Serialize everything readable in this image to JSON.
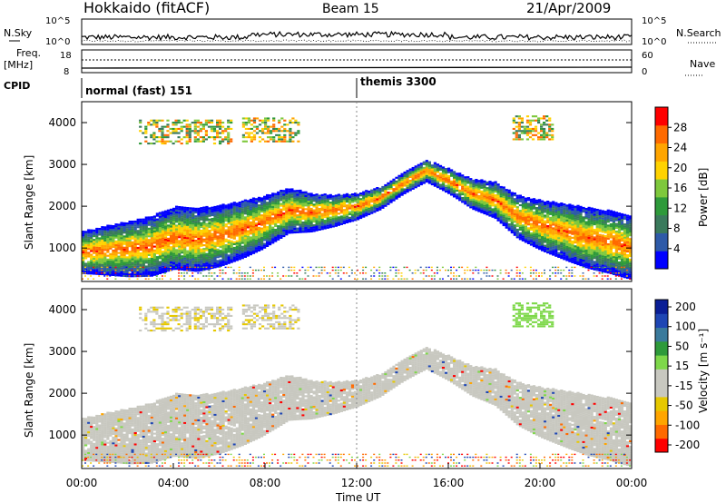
{
  "header": {
    "station": "Hokkaido (fitACF)",
    "beam": "Beam 15",
    "date": "21/Apr/2009"
  },
  "info_panel": {
    "nsky_label": "N.Sky",
    "nsky_ticks": [
      "10^5",
      "10^0"
    ],
    "nsearch_label": "N.Search",
    "nsearch_ticks": [
      "10^5",
      "10^0"
    ],
    "freq_label": "Freq.",
    "freq_unit": "[MHz]",
    "freq_ticks": [
      "18",
      "8"
    ],
    "nave_label": "Nave",
    "nave_ticks": [
      "60",
      "0"
    ],
    "cpid_label": "CPID",
    "cpid_segments": [
      {
        "label": "normal (fast) 151",
        "start_hour": 0
      },
      {
        "label": "themis 3300",
        "start_hour": 12.0
      }
    ]
  },
  "chart_data": [
    {
      "type": "heatmap",
      "panel": "power",
      "ylabel": "Slant Range [km]",
      "yticks": [
        1000,
        2000,
        3000,
        4000
      ],
      "ylim": [
        200,
        4500
      ],
      "xlim": [
        0,
        24
      ],
      "colorbar": {
        "label": "Power [dB]",
        "ticks": [
          4,
          8,
          12,
          16,
          20,
          24,
          28
        ],
        "range": [
          0,
          32
        ],
        "colors": [
          "#0000ff",
          "#2e5aa8",
          "#3a7a5c",
          "#2e9a3a",
          "#7ec83c",
          "#ffd200",
          "#ffa500",
          "#ff6a00",
          "#ff0000"
        ]
      },
      "echo_bands": [
        {
          "x": [
            0,
            1,
            2,
            3,
            4,
            5,
            6,
            7,
            7.8,
            8.4,
            9,
            10,
            11,
            12,
            13,
            14,
            15,
            16,
            17,
            18,
            19,
            20,
            21,
            22,
            23,
            24
          ],
          "y": [
            900,
            950,
            980,
            1050,
            1250,
            1200,
            1300,
            1450,
            1600,
            1750,
            1900,
            1850,
            1900,
            2000,
            2200,
            2550,
            2850,
            2600,
            2300,
            2150,
            1750,
            1550,
            1400,
            1250,
            1150,
            1000
          ]
        }
      ],
      "upper_patches": [
        {
          "x_start": 2.5,
          "x_end": 6.5,
          "y_center": 3800
        },
        {
          "x_start": 7.0,
          "x_end": 9.5,
          "y_center": 3850
        },
        {
          "x_start": 18.8,
          "x_end": 20.5,
          "y_center": 3900
        }
      ]
    },
    {
      "type": "heatmap",
      "panel": "velocity",
      "ylabel": "Slant Range [km]",
      "yticks": [
        1000,
        2000,
        3000,
        4000
      ],
      "ylim": [
        200,
        4500
      ],
      "xlim": [
        0,
        24
      ],
      "xlabel": "Time UT",
      "xticks": [
        "00:00",
        "04:00",
        "08:00",
        "12:00",
        "16:00",
        "20:00",
        "00:00"
      ],
      "colorbar": {
        "label": "Velocity [m s⁻¹]",
        "ticks": [
          200,
          100,
          50,
          15,
          -15,
          -50,
          -100,
          -200
        ],
        "colors": [
          "#ff0000",
          "#ff6a00",
          "#ffa500",
          "#e6c800",
          "#c8c8c0",
          "#c8c8c0",
          "#7ed84a",
          "#2e9a3a",
          "#3a7a9c",
          "#1e46b4",
          "#0a1e96"
        ]
      }
    }
  ]
}
